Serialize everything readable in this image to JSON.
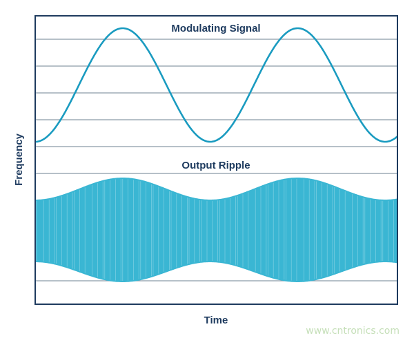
{
  "chart_data": {
    "type": "line",
    "xlabel": "Time",
    "ylabel": "Frequency",
    "grid": true,
    "series": [
      {
        "name": "Modulating Signal",
        "shape": "sine",
        "cycles_shown": 2.07,
        "start_phase": "trough",
        "color": "#1a9bc0"
      },
      {
        "name": "Output Ripple",
        "shape": "amplitude-modulated high-frequency carrier",
        "envelope_cycles_shown": 2.07,
        "color": "#3ab6d3"
      }
    ]
  },
  "colors": {
    "frame": "#1d3a5e",
    "grid": "#8a9aa8",
    "text": "#1d3a5e",
    "watermark": "#c5dfb8"
  },
  "watermark": "www.cntronics.com"
}
